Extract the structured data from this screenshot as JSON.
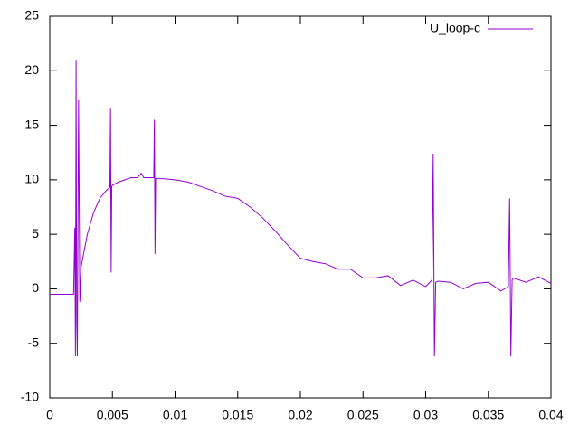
{
  "chart_data": {
    "type": "line",
    "x": [
      0,
      0.001,
      0.0019,
      0.002,
      0.00205,
      0.0021,
      0.00215,
      0.0022,
      0.0023,
      0.0024,
      0.0025,
      0.003,
      0.0035,
      0.004,
      0.0045,
      0.0048,
      0.00485,
      0.0049,
      0.00495,
      0.005,
      0.0055,
      0.006,
      0.0065,
      0.007,
      0.0073,
      0.0075,
      0.008,
      0.0083,
      0.00835,
      0.0084,
      0.00845,
      0.009,
      0.01,
      0.011,
      0.012,
      0.013,
      0.014,
      0.015,
      0.016,
      0.017,
      0.018,
      0.019,
      0.02,
      0.021,
      0.022,
      0.023,
      0.024,
      0.025,
      0.026,
      0.027,
      0.028,
      0.029,
      0.03,
      0.0305,
      0.0306,
      0.0307,
      0.0308,
      0.031,
      0.032,
      0.033,
      0.034,
      0.035,
      0.036,
      0.0366,
      0.0367,
      0.0368,
      0.0369,
      0.037,
      0.038,
      0.039,
      0.04
    ],
    "series": [
      {
        "name": "U_loop-c",
        "color": "#9400d3",
        "values": [
          -0.5,
          -0.5,
          -0.5,
          5.6,
          -6.2,
          21,
          -3,
          -6.2,
          17.3,
          -1.2,
          2,
          5,
          7,
          8.3,
          9,
          9.3,
          16.6,
          1.5,
          9.4,
          9.5,
          9.8,
          10,
          10.2,
          10.2,
          10.6,
          10.2,
          10.2,
          10.2,
          15.5,
          3.2,
          10.1,
          10.1,
          10,
          9.8,
          9.4,
          9,
          8.5,
          8.3,
          7.5,
          6.5,
          5.3,
          4,
          2.8,
          2.5,
          2.3,
          1.8,
          1.8,
          1,
          1,
          1.2,
          0.3,
          0.8,
          0.2,
          0.8,
          12.4,
          -6.2,
          0.6,
          0.7,
          0.6,
          0,
          0.5,
          0.6,
          -0.2,
          0.2,
          8.3,
          -6.2,
          0.8,
          1,
          0.6,
          1.1,
          0.5
        ]
      }
    ],
    "xlim": [
      0,
      0.04
    ],
    "xticks": [
      0,
      0.005,
      0.01,
      0.015,
      0.02,
      0.025,
      0.03,
      0.035,
      0.04
    ],
    "ylim": [
      -10,
      25
    ],
    "yticks": [
      -10,
      -5,
      0,
      5,
      10,
      15,
      20,
      25
    ],
    "legend": "top-right"
  }
}
